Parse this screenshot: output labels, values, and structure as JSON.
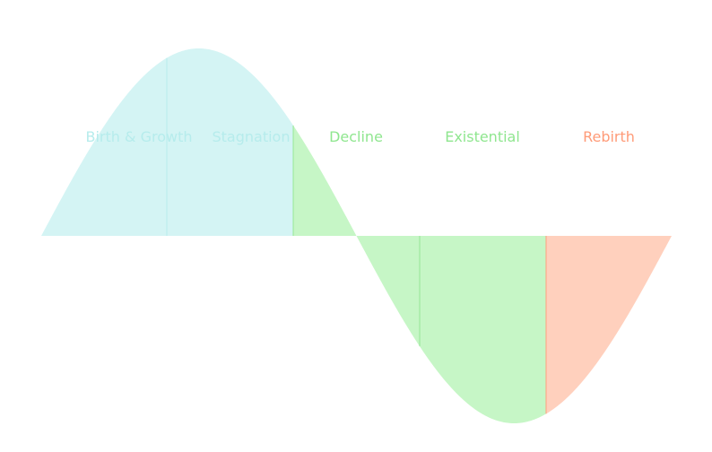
{
  "colors": {
    "teal": "#d4f4f4",
    "teal_text": "#b6ecec",
    "green": "#c6f6c6",
    "green_text": "#8fe68f",
    "salmon": "#ffd0bd",
    "salmon_text": "#ff9b78"
  },
  "phases": [
    {
      "label": "Birth & Growth",
      "fill": "teal",
      "text": "teal_text"
    },
    {
      "label": "Stagnation",
      "fill": "teal",
      "text": "teal_text"
    },
    {
      "label": "Decline",
      "fill": "green",
      "text": "green_text"
    },
    {
      "label": "Existential",
      "fill": "green",
      "text": "green_text"
    },
    {
      "label": "Rebirth",
      "fill": "salmon",
      "text": "salmon_text"
    }
  ]
}
